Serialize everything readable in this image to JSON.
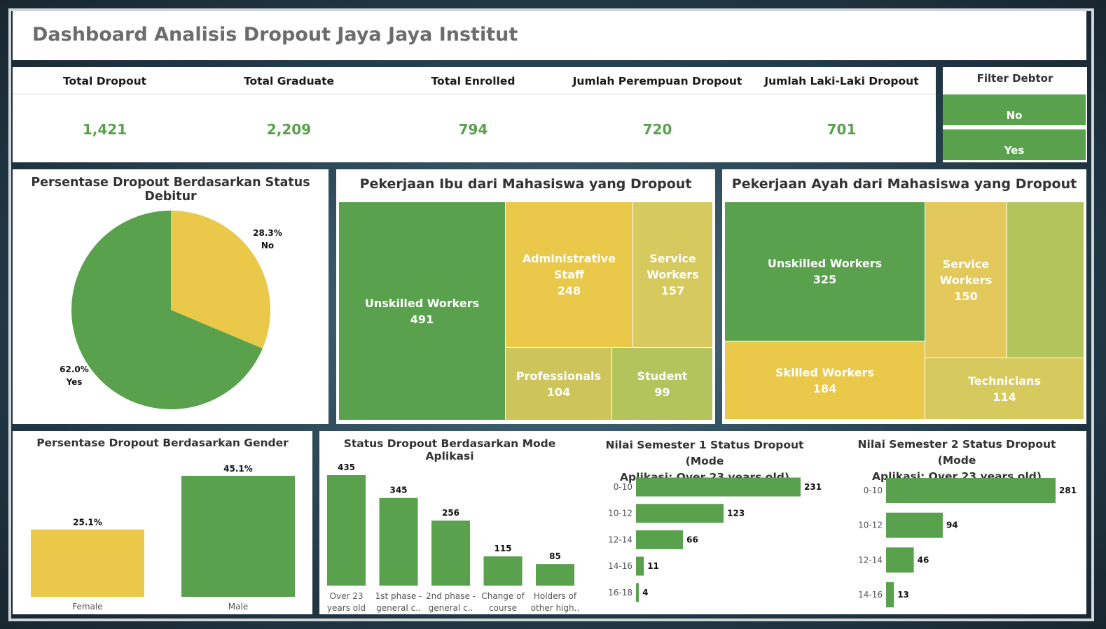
{
  "title": "Dashboard Analisis Dropout Jaya Jaya Institut",
  "kpis": [
    {
      "label": "Total Dropout",
      "value": "1,421"
    },
    {
      "label": "Total Graduate",
      "value": "2,209"
    },
    {
      "label": "Total Enrolled",
      "value": "794"
    },
    {
      "label": "Jumlah Perempuan Dropout",
      "value": "720"
    },
    {
      "label": "Jumlah Laki-Laki Dropout",
      "value": "701"
    }
  ],
  "filter": {
    "label": "Filter Debtor",
    "options": [
      "No",
      "Yes"
    ]
  },
  "colors": {
    "green": "#5aa14e",
    "yellow": "#e9c84a",
    "olive": "#d3c95d",
    "lime": "#b2c45b"
  },
  "chart_data": [
    {
      "type": "pie",
      "title": "Persentase Dropout Berdasarkan Status Debitur",
      "slices": [
        {
          "label": "No",
          "pct": 28.3,
          "pct_label": "28.3%",
          "color": "#e9c84a"
        },
        {
          "label": "Yes",
          "pct": 62.0,
          "pct_label": "62.0%",
          "color": "#5aa14e"
        }
      ]
    },
    {
      "type": "treemap",
      "title": "Pekerjaan Ibu dari Mahasiswa yang Dropout",
      "items": [
        {
          "label": "Unskilled Workers",
          "value": 491,
          "color": "#5aa14e"
        },
        {
          "label": "Administrative Staff",
          "value": 248,
          "color": "#e9c84a"
        },
        {
          "label": "Service Workers",
          "value": 157,
          "color": "#d6c95e"
        },
        {
          "label": "Professionals",
          "value": 104,
          "color": "#cdc55c"
        },
        {
          "label": "Student",
          "value": 99,
          "color": "#b2c45b"
        }
      ]
    },
    {
      "type": "treemap",
      "title": "Pekerjaan Ayah dari Mahasiswa yang Dropout",
      "items": [
        {
          "label": "Unskilled Workers",
          "value": 325,
          "color": "#5aa14e"
        },
        {
          "label": "Skilled Workers",
          "value": 184,
          "color": "#e9c84a"
        },
        {
          "label": "Service Workers",
          "value": 150,
          "color": "#e3c85c"
        },
        {
          "label": "",
          "value": null,
          "color": "#b2c45b"
        },
        {
          "label": "Technicians",
          "value": 114,
          "color": "#d6c95e"
        }
      ]
    },
    {
      "type": "bar",
      "title": "Persentase Dropout Berdasarkan Gender",
      "categories": [
        "Female",
        "Male"
      ],
      "values": [
        25.1,
        45.1
      ],
      "value_labels": [
        "25.1%",
        "45.1%"
      ],
      "colors": [
        "#e9c84a",
        "#5aa14e"
      ]
    },
    {
      "type": "bar",
      "title": "Status Dropout Berdasarkan Mode Aplikasi",
      "categories": [
        [
          "Over 23",
          "years old"
        ],
        [
          "1st phase -",
          "general c.."
        ],
        [
          "2nd phase -",
          "general c.."
        ],
        [
          "Change of",
          "course"
        ],
        [
          "Holders of",
          "other high.."
        ]
      ],
      "values": [
        435,
        345,
        256,
        115,
        85
      ]
    },
    {
      "type": "bar",
      "orientation": "horizontal",
      "title": [
        "Nilai Semester 1 Status Dropout (Mode",
        "Aplikasi: Over 23 years old)"
      ],
      "categories": [
        "0-10",
        "10-12",
        "12-14",
        "14-16",
        "16-18"
      ],
      "values": [
        231,
        123,
        66,
        11,
        4
      ]
    },
    {
      "type": "bar",
      "orientation": "horizontal",
      "title": [
        "Nilai Semester 2 Status Dropout (Mode",
        "Aplikasi: Over 23 years old)"
      ],
      "categories": [
        "0-10",
        "10-12",
        "12-14",
        "14-16"
      ],
      "values": [
        281,
        94,
        46,
        13
      ]
    }
  ]
}
